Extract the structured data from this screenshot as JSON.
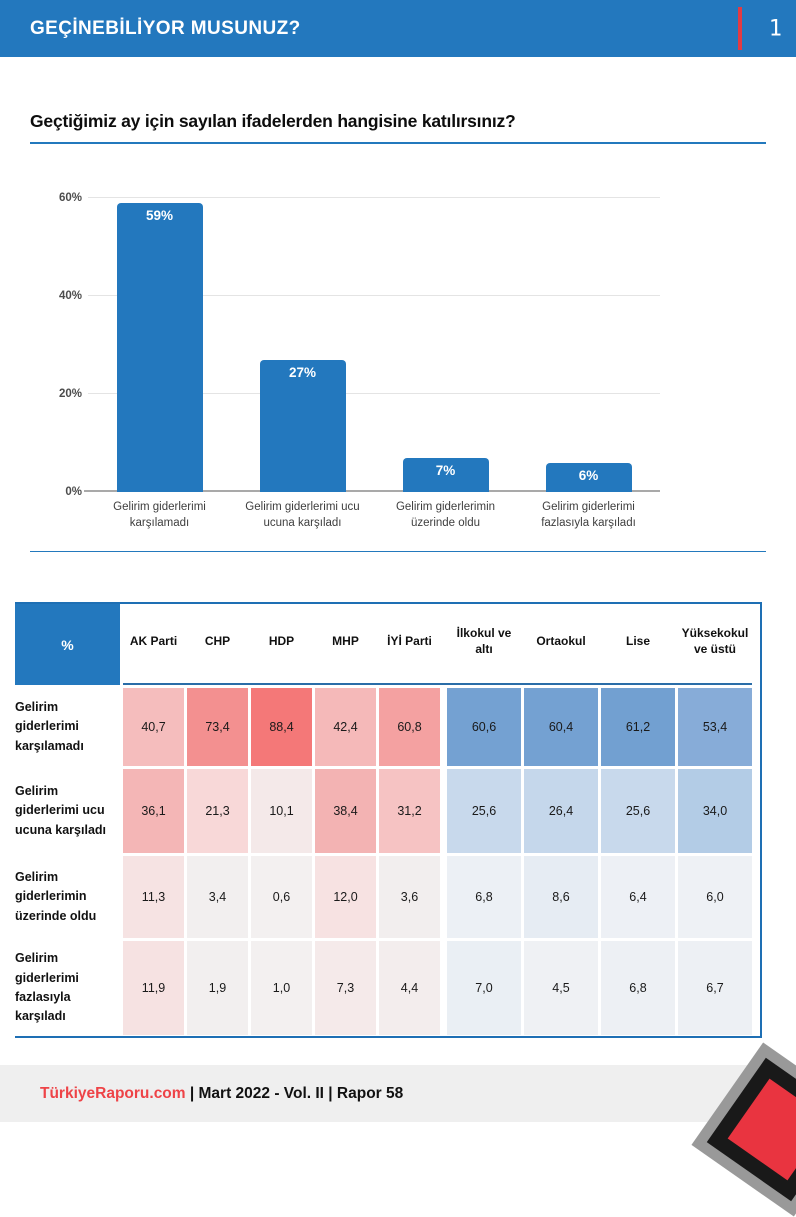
{
  "header": {
    "title": "GEÇİNEBİLİYOR MUSUNUZ?",
    "page_number": "1",
    "bg_color": "#2378be",
    "accent_color": "#e23b44"
  },
  "question": {
    "title": "Geçtiğimiz ay için sayılan ifadelerden hangisine katılırsınız?"
  },
  "chart_data": [
    {
      "type": "bar",
      "title": "Geçtiğimiz ay için sayılan ifadelerden hangisine katılırsınız?",
      "categories": [
        "Gelirim giderlerimi karşılamadı",
        "Gelirim giderlerimi ucu ucuna karşıladı",
        "Gelirim giderlerimin üzerinde oldu",
        "Gelirim giderlerimi fazlasıyla karşıladı"
      ],
      "values": [
        59,
        27,
        7,
        6
      ],
      "value_labels": [
        "59%",
        "27%",
        "7%",
        "6%"
      ],
      "xlabel": "",
      "ylabel": "",
      "ylim": [
        0,
        62
      ],
      "yticks": [
        {
          "v": 0,
          "label": "0%"
        },
        {
          "v": 20,
          "label": "20%"
        },
        {
          "v": 40,
          "label": "40%"
        },
        {
          "v": 60,
          "label": "60%"
        }
      ],
      "grid": true,
      "legend": false,
      "bar_color": "#2378be"
    },
    {
      "type": "table",
      "corner_label": "%",
      "corner_bg": "#2378be",
      "columns": [
        "AK Parti",
        "CHP",
        "HDP",
        "MHP",
        "İYİ Parti",
        "İlkokul ve altı",
        "Ortaokul",
        "Lise",
        "Yüksekokul ve üstü"
      ],
      "column_groups": [
        {
          "name": "party",
          "count": 5,
          "scale": "red"
        },
        {
          "name": "education",
          "count": 4,
          "scale": "blue"
        }
      ],
      "rows": [
        {
          "label": "Gelirim giderlerimi karşılamadı",
          "values": [
            40.7,
            73.4,
            88.4,
            42.4,
            60.8,
            60.6,
            60.4,
            61.2,
            53.4
          ],
          "display": [
            "40,7",
            "73,4",
            "88,4",
            "42,4",
            "60,8",
            "60,6",
            "60,4",
            "61,2",
            "53,4"
          ],
          "colors": [
            "#f5bdbd",
            "#f39090",
            "#f47878",
            "#f5b9b9",
            "#f4a1a1",
            "#74a1d2",
            "#74a1d2",
            "#72a0d1",
            "#87acd8"
          ]
        },
        {
          "label": "Gelirim giderlerimi ucu ucuna karşıladı",
          "values": [
            36.1,
            21.3,
            10.1,
            38.4,
            31.2,
            25.6,
            26.4,
            25.6,
            34.0
          ],
          "display": [
            "36,1",
            "21,3",
            "10,1",
            "38,4",
            "31,2",
            "25,6",
            "26,4",
            "25,6",
            "34,0"
          ],
          "colors": [
            "#f4b6b6",
            "#f8d8d8",
            "#f4e9e9",
            "#f3b3b3",
            "#f6c3c3",
            "#c8d9ec",
            "#c5d7eb",
            "#c8d9ec",
            "#b3cce6"
          ]
        },
        {
          "label": "Gelirim giderlerimin üzerinde oldu",
          "values": [
            11.3,
            3.4,
            0.6,
            12.0,
            3.6,
            6.8,
            8.6,
            6.4,
            6.0
          ],
          "display": [
            "11,3",
            "3,4",
            "0,6",
            "12,0",
            "3,6",
            "6,8",
            "8,6",
            "6,4",
            "6,0"
          ],
          "colors": [
            "#f6e3e3",
            "#f2efef",
            "#f3f0f0",
            "#f7e2e2",
            "#f2eeee",
            "#ecf0f5",
            "#e6ecf3",
            "#edf0f5",
            "#eef1f5"
          ]
        },
        {
          "label": "Gelirim giderlerimi fazlasıyla karşıladı",
          "values": [
            11.9,
            1.9,
            1.0,
            7.3,
            4.4,
            7.0,
            4.5,
            6.8,
            6.7
          ],
          "display": [
            "11,9",
            "1,9",
            "1,0",
            "7,3",
            "4,4",
            "7,0",
            "4,5",
            "6,8",
            "6,7"
          ],
          "colors": [
            "#f6e2e2",
            "#f2efef",
            "#f3f0f0",
            "#f5eaea",
            "#f3eded",
            "#eaeff4",
            "#eff1f4",
            "#edf0f4",
            "#edf0f4"
          ]
        }
      ]
    }
  ],
  "footer": {
    "brand": "TürkiyeRaporu.com",
    "meta": " | Mart 2022 - Vol. II | Rapor 58",
    "bg_color": "#efefef",
    "brand_color": "#ee4347"
  }
}
